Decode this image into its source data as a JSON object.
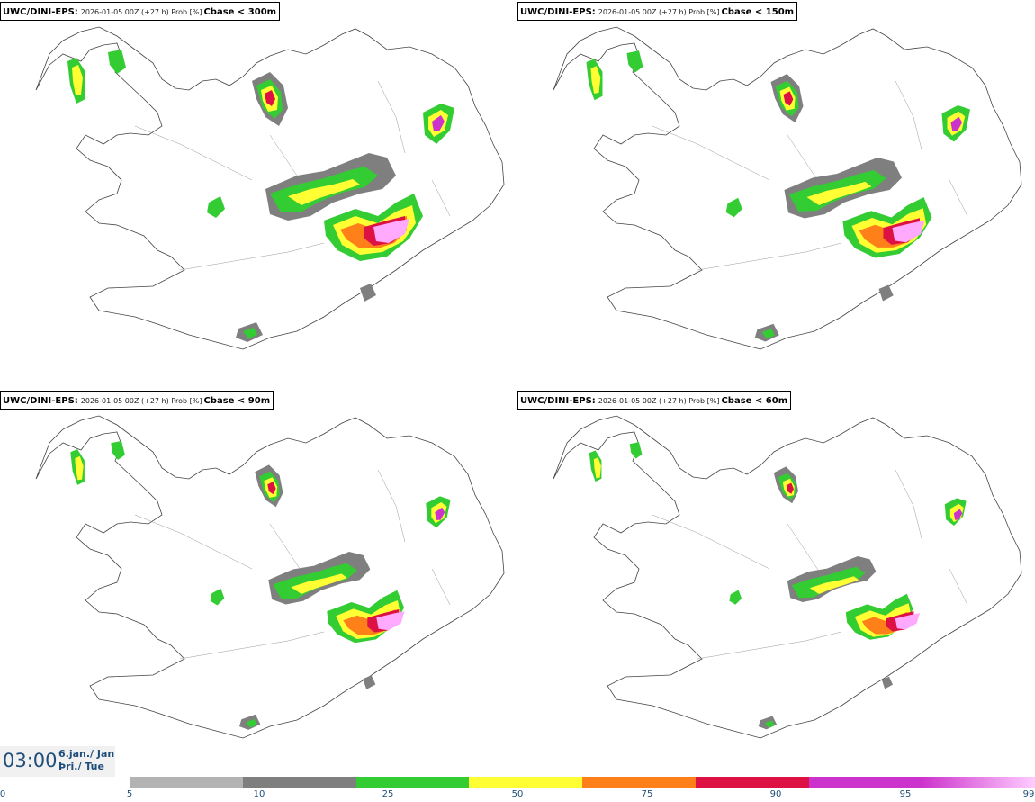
{
  "panels": [
    {
      "model": "UWC/DINI-EPS",
      "run": "2026-01-05 00Z (+27 h) Prob [%]",
      "threshold": "Cbase < 300m"
    },
    {
      "model": "UWC/DINI-EPS",
      "run": "2026-01-05 00Z (+27 h) Prob [%]",
      "threshold": "Cbase < 150m"
    },
    {
      "model": "UWC/DINI-EPS",
      "run": "2026-01-05 00Z (+27 h) Prob [%]",
      "threshold": "Cbase < 90m"
    },
    {
      "model": "UWC/DINI-EPS",
      "run": "2026-01-05 00Z (+27 h) Prob [%]",
      "threshold": "Cbase < 60m"
    }
  ],
  "time": {
    "clock": "03:00",
    "date_line1": "6.jan./ Jan",
    "date_line2": "Þri./ Tue"
  },
  "colorbar": {
    "ticks": [
      "0",
      "5",
      "10",
      "25",
      "50",
      "75",
      "90",
      "95",
      "99"
    ],
    "colors": [
      "#b3b3b3",
      "#7f7f7f",
      "#33cc33",
      "#ffff33",
      "#ff7f19",
      "#dd1144",
      "#cc33cc",
      "#ffaaff"
    ]
  }
}
